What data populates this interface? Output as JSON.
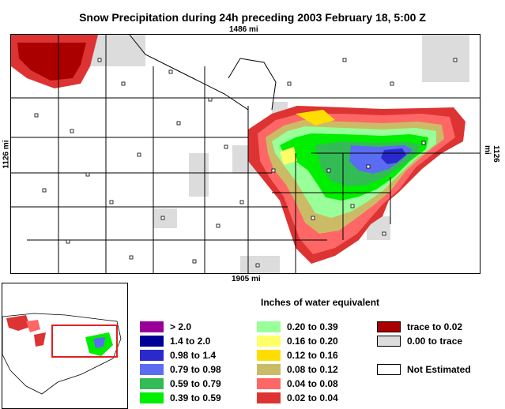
{
  "title": "Snow Precipitation during 24h preceding 2003 February 18, 5:00 Z",
  "distances": {
    "top": "1486 mi",
    "bottom": "1905 mi",
    "left": "1126 mi",
    "right": "1126 mi"
  },
  "legend": {
    "title": "Inches of water equivalent",
    "col1": [
      {
        "label": ">  2.0",
        "color": "#990099"
      },
      {
        "label": "1.4 to  2.0",
        "color": "#000099"
      },
      {
        "label": "0.98 to  1.4",
        "color": "#2a2acc"
      },
      {
        "label": "0.79 to 0.98",
        "color": "#5a6cf2"
      },
      {
        "label": "0.59 to 0.79",
        "color": "#33bb55"
      },
      {
        "label": "0.39 to 0.59",
        "color": "#00ee00"
      }
    ],
    "col2": [
      {
        "label": "0.20 to 0.39",
        "color": "#99ff99"
      },
      {
        "label": "0.16 to 0.20",
        "color": "#ffff66"
      },
      {
        "label": "0.12 to 0.16",
        "color": "#ffdd00"
      },
      {
        "label": "0.08 to 0.12",
        "color": "#ccbb66"
      },
      {
        "label": "0.04 to 0.08",
        "color": "#ff6666"
      },
      {
        "label": "0.02 to 0.04",
        "color": "#dd3333"
      }
    ],
    "col3": [
      {
        "label": "trace to 0.02",
        "color": "#aa0000"
      },
      {
        "label": "0.00 to trace",
        "color": "#dddddd"
      },
      {
        "label": "",
        "color": ""
      },
      {
        "label": "Not Estimated",
        "color": "#ffffff"
      }
    ]
  }
}
